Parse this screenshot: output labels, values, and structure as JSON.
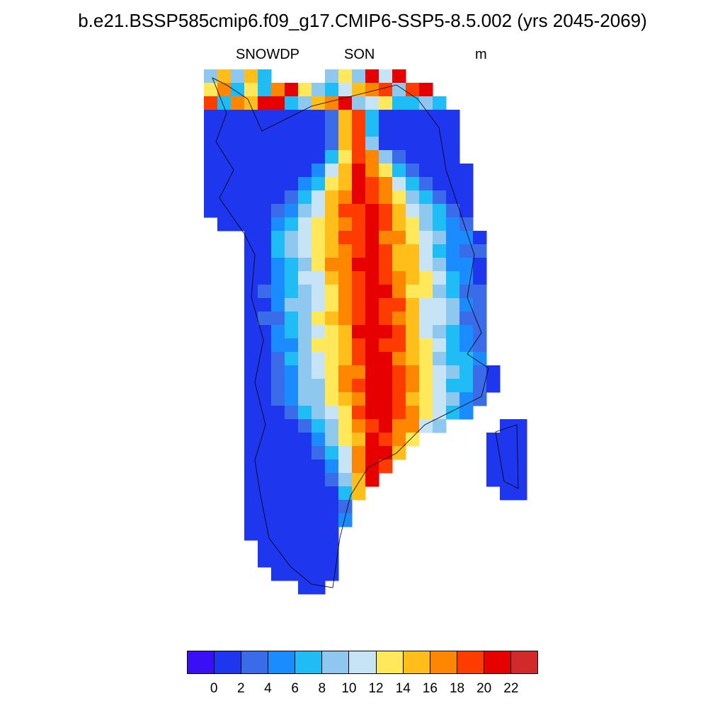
{
  "title": "b.e21.BSSP585cmip6.f09_g17.CMIP6-SSP5-8.5.002 (yrs 2045-2069)",
  "subtitle": {
    "variable": "SNOWDP",
    "season": "SON",
    "units": "m"
  },
  "colorbar": {
    "colors": [
      "#3a0ff5",
      "#1e36ee",
      "#3a6ce9",
      "#1a8cff",
      "#1fbcf5",
      "#8fc8ee",
      "#c6e4f6",
      "#ffe95a",
      "#ffbe1a",
      "#ff8600",
      "#ff3c00",
      "#e60000",
      "#d22a2a"
    ],
    "tick_labels": [
      "0",
      "2",
      "4",
      "6",
      "8",
      "10",
      "12",
      "14",
      "16",
      "18",
      "20",
      "22"
    ]
  },
  "chart_data": {
    "type": "heatmap",
    "title": "b.e21.BSSP585cmip6.f09_g17.CMIP6-SSP5-8.5.002 (yrs 2045-2069)",
    "variable": "SNOWDP",
    "season": "SON",
    "units": "m",
    "region": "Greenland",
    "levels": [
      0,
      2,
      4,
      6,
      8,
      10,
      12,
      14,
      16,
      18,
      20,
      22
    ],
    "value_range": [
      0,
      22
    ],
    "description_of_field": "Deepest snow (20-22+) over central/south-central ice sheet, decreasing to 0-2 along coastal margins"
  }
}
